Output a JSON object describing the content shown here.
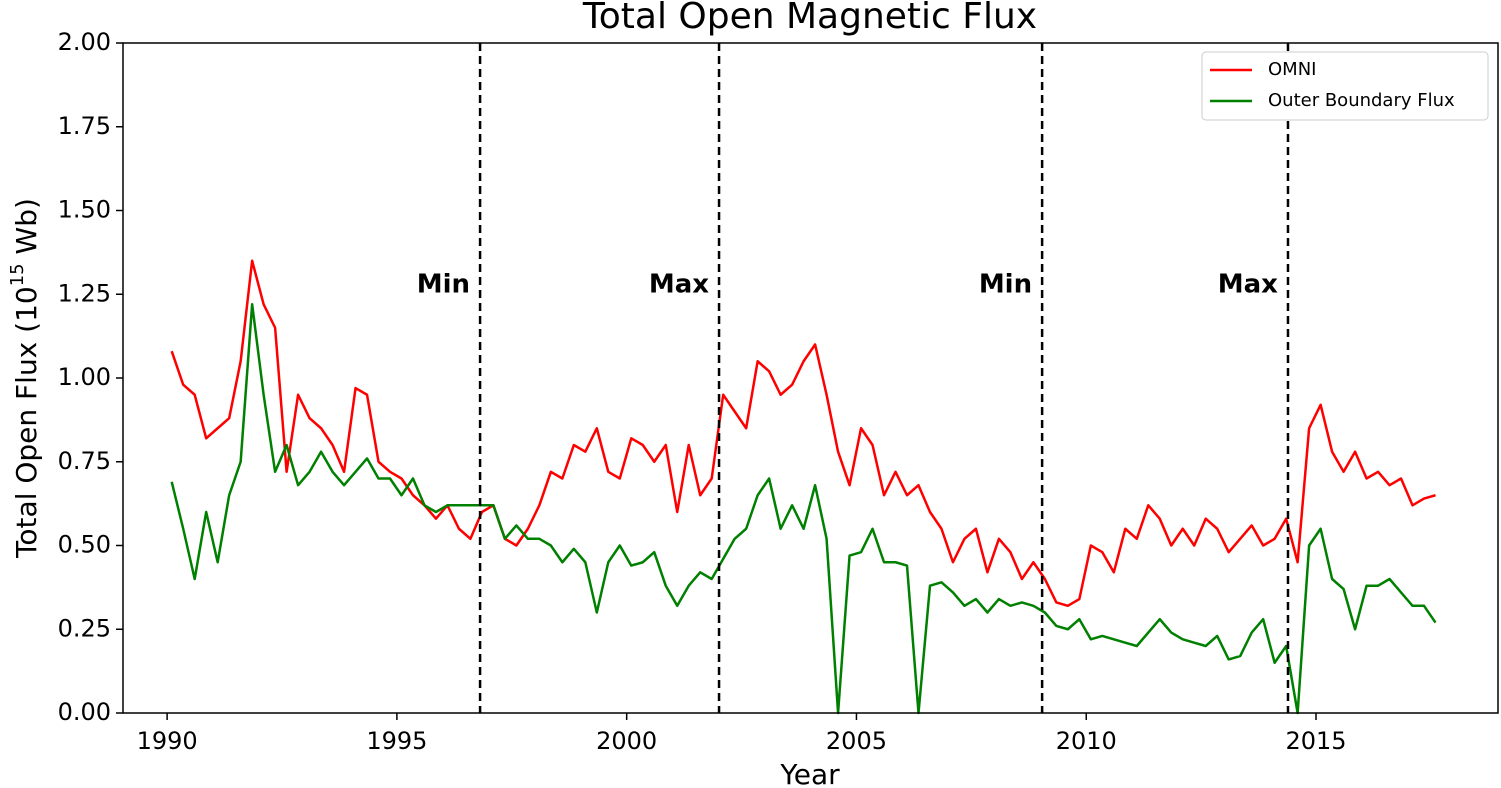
{
  "chart_data": {
    "type": "line",
    "title": "Total Open Magnetic Flux",
    "xlabel": "Year",
    "ylabel_parts": [
      "Total Open Flux (10",
      "15",
      " Wb)"
    ],
    "xlim": [
      1989.04,
      2018.96
    ],
    "ylim": [
      0,
      2
    ],
    "xticks": [
      1990,
      1995,
      2000,
      2005,
      2010,
      2015
    ],
    "yticks": [
      {
        "value": 0,
        "label": "0.00"
      },
      {
        "value": 0.25,
        "label": "0.25"
      },
      {
        "value": 0.5,
        "label": "0.50"
      },
      {
        "value": 0.75,
        "label": "0.75"
      },
      {
        "value": 1,
        "label": "1.00"
      },
      {
        "value": 1.25,
        "label": "1.25"
      },
      {
        "value": 1.5,
        "label": "1.50"
      },
      {
        "value": 1.75,
        "label": "1.75"
      },
      {
        "value": 2,
        "label": "2.00"
      }
    ],
    "grid": false,
    "legend": "upper right",
    "x": [
      1990.1,
      1990.35,
      1990.6,
      1990.85,
      1991.1,
      1991.35,
      1991.6,
      1991.85,
      1992.1,
      1992.35,
      1992.6,
      1992.85,
      1993.1,
      1993.35,
      1993.6,
      1993.85,
      1994.1,
      1994.35,
      1994.6,
      1994.85,
      1995.1,
      1995.35,
      1995.6,
      1995.85,
      1996.1,
      1996.35,
      1996.6,
      1996.85,
      1997.1,
      1997.35,
      1997.6,
      1997.85,
      1998.1,
      1998.35,
      1998.6,
      1998.85,
      1999.1,
      1999.35,
      1999.6,
      1999.85,
      2000.1,
      2000.35,
      2000.6,
      2000.85,
      2001.1,
      2001.35,
      2001.6,
      2001.85,
      2002.1,
      2002.35,
      2002.6,
      2002.85,
      2003.1,
      2003.35,
      2003.6,
      2003.85,
      2004.1,
      2004.35,
      2004.6,
      2004.85,
      2005.1,
      2005.35,
      2005.6,
      2005.85,
      2006.1,
      2006.35,
      2006.6,
      2006.85,
      2007.1,
      2007.35,
      2007.6,
      2007.85,
      2008.1,
      2008.35,
      2008.6,
      2008.85,
      2009.1,
      2009.35,
      2009.6,
      2009.85,
      2010.1,
      2010.35,
      2010.6,
      2010.85,
      2011.1,
      2011.35,
      2011.6,
      2011.85,
      2012.1,
      2012.35,
      2012.6,
      2012.85,
      2013.1,
      2013.35,
      2013.6,
      2013.85,
      2014.1,
      2014.35,
      2014.6,
      2014.85,
      2015.1,
      2015.35,
      2015.6,
      2015.85,
      2016.1,
      2016.35,
      2016.6,
      2016.85,
      2017.1,
      2017.35,
      2017.6
    ],
    "series": [
      {
        "name": "OMNI",
        "color": "#ff0000",
        "values": [
          1.08,
          0.98,
          0.95,
          0.82,
          0.85,
          0.88,
          1.05,
          1.35,
          1.22,
          1.15,
          0.72,
          0.95,
          0.88,
          0.85,
          0.8,
          0.72,
          0.97,
          0.95,
          0.75,
          0.72,
          0.7,
          0.65,
          0.62,
          0.58,
          0.62,
          0.55,
          0.52,
          0.6,
          0.62,
          0.52,
          0.5,
          0.55,
          0.62,
          0.72,
          0.7,
          0.8,
          0.78,
          0.85,
          0.72,
          0.7,
          0.82,
          0.8,
          0.75,
          0.8,
          0.6,
          0.8,
          0.65,
          0.7,
          0.95,
          0.9,
          0.85,
          1.05,
          1.02,
          0.95,
          0.98,
          1.05,
          1.1,
          0.95,
          0.78,
          0.68,
          0.85,
          0.8,
          0.65,
          0.72,
          0.65,
          0.68,
          0.6,
          0.55,
          0.45,
          0.52,
          0.55,
          0.42,
          0.52,
          0.48,
          0.4,
          0.45,
          0.4,
          0.33,
          0.32,
          0.34,
          0.5,
          0.48,
          0.42,
          0.55,
          0.52,
          0.62,
          0.58,
          0.5,
          0.55,
          0.5,
          0.58,
          0.55,
          0.48,
          0.52,
          0.56,
          0.5,
          0.52,
          0.58,
          0.45,
          0.85,
          0.92,
          0.78,
          0.72,
          0.78,
          0.7,
          0.72,
          0.68,
          0.7,
          0.62,
          0.64,
          0.65
        ]
      },
      {
        "name": "Outer Boundary Flux",
        "color": "#008000",
        "values": [
          0.69,
          0.55,
          0.4,
          0.6,
          0.45,
          0.65,
          0.75,
          1.22,
          0.95,
          0.72,
          0.8,
          0.68,
          0.72,
          0.78,
          0.72,
          0.68,
          0.72,
          0.76,
          0.7,
          0.7,
          0.65,
          0.7,
          0.62,
          0.6,
          0.62,
          0.62,
          0.62,
          0.62,
          0.62,
          0.52,
          0.56,
          0.52,
          0.52,
          0.5,
          0.45,
          0.49,
          0.45,
          0.3,
          0.45,
          0.5,
          0.44,
          0.45,
          0.48,
          0.38,
          0.32,
          0.38,
          0.42,
          0.4,
          0.46,
          0.52,
          0.55,
          0.65,
          0.7,
          0.55,
          0.62,
          0.55,
          0.68,
          0.52,
          0.0,
          0.47,
          0.48,
          0.55,
          0.45,
          0.45,
          0.44,
          0.0,
          0.38,
          0.39,
          0.36,
          0.32,
          0.34,
          0.3,
          0.34,
          0.32,
          0.33,
          0.32,
          0.3,
          0.26,
          0.25,
          0.28,
          0.22,
          0.23,
          0.22,
          0.21,
          0.2,
          0.24,
          0.28,
          0.24,
          0.22,
          0.21,
          0.2,
          0.23,
          0.16,
          0.17,
          0.24,
          0.28,
          0.15,
          0.2,
          0.0,
          0.5,
          0.55,
          0.4,
          0.37,
          0.25,
          0.38,
          0.38,
          0.4,
          0.36,
          0.32,
          0.32,
          0.27
        ]
      }
    ],
    "vlines": [
      {
        "x": 1996.81,
        "label": "Min"
      },
      {
        "x": 2002.01,
        "label": "Max"
      },
      {
        "x": 2009.04,
        "label": "Min"
      },
      {
        "x": 2014.39,
        "label": "Max"
      }
    ]
  }
}
